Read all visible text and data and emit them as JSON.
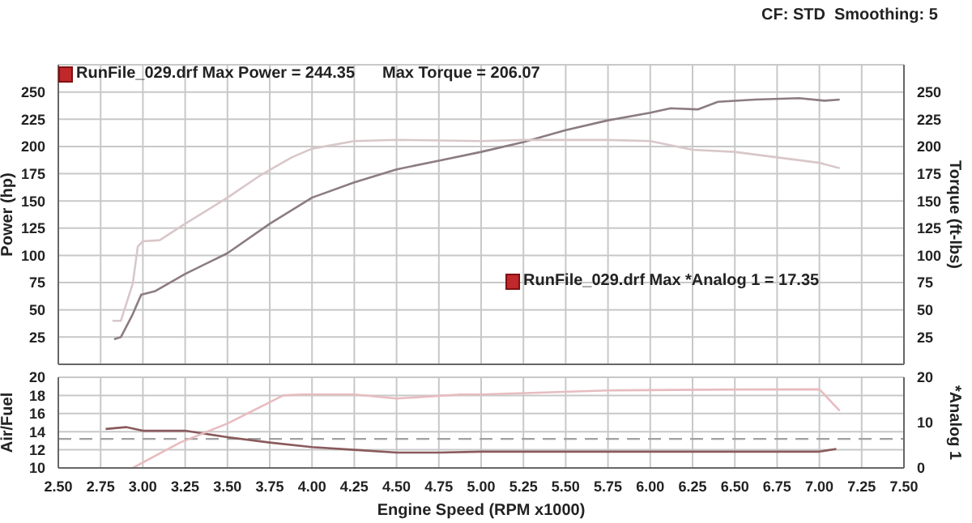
{
  "chart_data": [
    {
      "type": "line",
      "ylabel": "Power (hp)",
      "y2label": "Torque (ft-lbs)",
      "annotations": [
        "CF: STD  Smoothing: 5",
        "RunFile_029.drf Max Power = 244.35",
        "Max Torque = 206.07",
        "RunFile_029.drf Max *Analog 1 = 17.35"
      ],
      "xlim": [
        2.5,
        7.5
      ],
      "xticks": [
        2.5,
        2.75,
        3,
        3.25,
        3.5,
        3.75,
        4,
        4.25,
        4.5,
        4.75,
        5,
        5.25,
        5.5,
        5.75,
        6,
        6.25,
        6.5,
        6.75,
        7,
        7.25,
        7.5
      ],
      "ylim": [
        0,
        275
      ],
      "yticks": [
        25,
        50,
        75,
        100,
        125,
        150,
        175,
        200,
        225,
        250
      ],
      "y2lim": [
        0,
        275
      ],
      "y2ticks": [
        25,
        50,
        75,
        100,
        125,
        150,
        175,
        200,
        225,
        250
      ],
      "tick_labels": "y",
      "grid": true,
      "marker": "none",
      "line_style": "solid",
      "series": [
        {
          "color": "#8c7c82",
          "x": [
            2.83,
            2.87,
            2.94,
            2.99,
            3.07,
            3.25,
            3.5,
            3.75,
            4.0,
            4.25,
            4.5,
            4.75,
            5.0,
            5.25,
            5.5,
            5.75,
            6.0,
            6.12,
            6.28,
            6.4,
            6.62,
            6.88,
            7.03,
            7.12
          ],
          "values": [
            23,
            25,
            46,
            64,
            67,
            83,
            102,
            129,
            153,
            167,
            179,
            187,
            195,
            204,
            215,
            224,
            231,
            235,
            234,
            241,
            243,
            244.35,
            242,
            243
          ]
        },
        {
          "color": "#d9c7c9",
          "axis": "y2",
          "x": [
            2.82,
            2.87,
            2.94,
            2.97,
            3.0,
            3.1,
            3.25,
            3.5,
            3.69,
            3.88,
            4.0,
            4.25,
            4.5,
            5.0,
            5.25,
            5.5,
            5.75,
            6.0,
            6.25,
            6.5,
            6.75,
            7.0,
            7.12
          ],
          "values": [
            40,
            40,
            74,
            108,
            113,
            114,
            129,
            153,
            173,
            190,
            198,
            205,
            206.07,
            205,
            206,
            206,
            206,
            205,
            197,
            195,
            190,
            185,
            180
          ]
        }
      ]
    },
    {
      "type": "line",
      "ylabel": "Air/Fuel",
      "y2label": "*Analog 1",
      "xlabel": "Engine Speed (RPM x1000)",
      "xlim": [
        2.5,
        7.5
      ],
      "xticks": [
        {
          "value": 2.5,
          "label": "2.50"
        },
        {
          "value": 2.75,
          "label": "2.75"
        },
        {
          "value": 3,
          "label": "3.00"
        },
        {
          "value": 3.25,
          "label": "3.25"
        },
        {
          "value": 3.5,
          "label": "3.50"
        },
        {
          "value": 3.75,
          "label": "3.75"
        },
        {
          "value": 4,
          "label": "4.00"
        },
        {
          "value": 4.25,
          "label": "4.25"
        },
        {
          "value": 4.5,
          "label": "4.50"
        },
        {
          "value": 4.75,
          "label": "4.75"
        },
        {
          "value": 5,
          "label": "5.00"
        },
        {
          "value": 5.25,
          "label": "5.25"
        },
        {
          "value": 5.5,
          "label": "5.50"
        },
        {
          "value": 5.75,
          "label": "5.75"
        },
        {
          "value": 6,
          "label": "6.00"
        },
        {
          "value": 6.25,
          "label": "6.25"
        },
        {
          "value": 6.5,
          "label": "6.50"
        },
        {
          "value": 6.75,
          "label": "6.75"
        },
        {
          "value": 7,
          "label": "7.00"
        },
        {
          "value": 7.25,
          "label": "7.25"
        },
        {
          "value": 7.5,
          "label": "7.50"
        }
      ],
      "ylim": [
        10,
        20
      ],
      "yticks": [
        10,
        12,
        14,
        16,
        18,
        20
      ],
      "y2lim": [
        0,
        20
      ],
      "y2ticks": [
        0,
        10,
        20
      ],
      "grid": true,
      "marker": "none",
      "line_style": "solid",
      "ref_lines": [
        {
          "axis": "y",
          "value": 13.2,
          "color": "#a0a0a0",
          "line_style": "dashed"
        }
      ],
      "series": [
        {
          "color": "#8a5a5c",
          "x": [
            2.78,
            2.9,
            3.0,
            3.25,
            3.5,
            3.75,
            4.0,
            4.25,
            4.5,
            4.75,
            5.0,
            5.5,
            6.0,
            6.5,
            7.0,
            7.1
          ],
          "values": [
            14.3,
            14.5,
            14.1,
            14.1,
            13.4,
            12.8,
            12.3,
            12.0,
            11.7,
            11.7,
            11.8,
            11.8,
            11.8,
            11.8,
            11.8,
            12.1
          ]
        },
        {
          "color": "#e7bcc0",
          "axis": "y2",
          "x": [
            2.94,
            3.22,
            3.5,
            3.75,
            3.83,
            3.94,
            4.25,
            4.5,
            4.88,
            5.0,
            5.75,
            6.5,
            7.0,
            7.12
          ],
          "values": [
            0,
            5.6,
            9.8,
            14.5,
            16,
            16.2,
            16.2,
            15.3,
            16.2,
            16.2,
            17.1,
            17.3,
            17.35,
            12.6
          ]
        }
      ]
    }
  ]
}
